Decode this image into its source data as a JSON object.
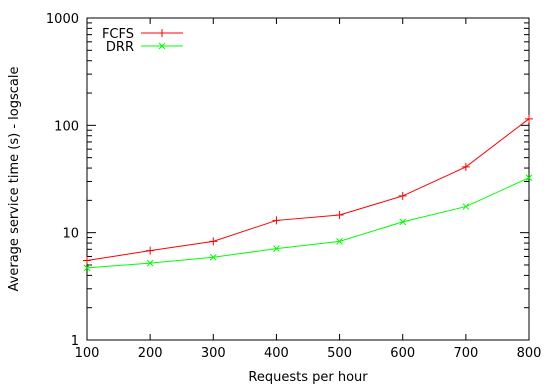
{
  "chart_data": {
    "type": "line",
    "title": "",
    "xlabel": "Requests per hour",
    "ylabel": "Average service time (s) - logscale",
    "x": [
      100,
      200,
      300,
      400,
      500,
      600,
      700,
      800
    ],
    "xlim": [
      100,
      800
    ],
    "ylim": [
      1,
      1000
    ],
    "yscale": "log",
    "x_ticks": [
      "100",
      "200",
      "300",
      "400",
      "500",
      "600",
      "700",
      "800"
    ],
    "y_ticks": [
      {
        "value": 1,
        "label": "1"
      },
      {
        "value": 10,
        "label": "10"
      },
      {
        "value": 100,
        "label": "100"
      },
      {
        "value": 1000,
        "label": "1000"
      }
    ],
    "grid": false,
    "legend_position": "top-left",
    "series": [
      {
        "name": "FCFS",
        "color": "#ff0000",
        "marker": "plus",
        "values": [
          5.5,
          6.8,
          8.3,
          13.0,
          14.6,
          22.0,
          41.0,
          115.0
        ]
      },
      {
        "name": "DRR",
        "color": "#00ff00",
        "marker": "cross",
        "values": [
          4.7,
          5.2,
          5.9,
          7.1,
          8.3,
          12.6,
          17.5,
          32.5
        ]
      }
    ]
  }
}
